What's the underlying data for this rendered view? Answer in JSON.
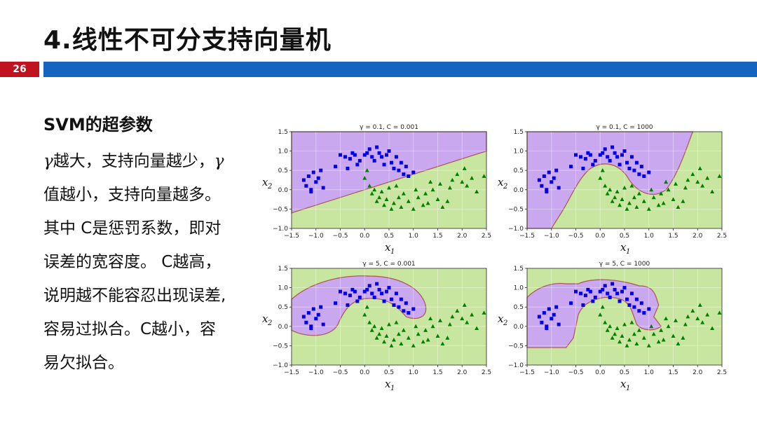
{
  "slide": {
    "title": "4.线性不可分支持向量机",
    "page_number": "26",
    "colors": {
      "page_badge": "#c1121f",
      "header_bar": "#1565c0"
    }
  },
  "text": {
    "heading": "SVM的超参数",
    "lines": [
      {
        "gamma_start": "γ",
        "text": "越大，支持向量越少，",
        "gamma_end": "γ"
      },
      {
        "gamma_start": "",
        "text": "值越小，支持向量越多。",
        "gamma_end": ""
      },
      {
        "gamma_start": "",
        "text": "其中 C是惩罚系数，即对",
        "gamma_end": ""
      },
      {
        "gamma_start": "",
        "text": "误差的宽容度。 C越高，",
        "gamma_end": ""
      },
      {
        "gamma_start": "",
        "text": "说明越不能容忍出现误差,",
        "gamma_end": ""
      },
      {
        "gamma_start": "",
        "text": "容易过拟合。C越小，容",
        "gamma_end": ""
      },
      {
        "gamma_start": "",
        "text": "易欠拟合。",
        "gamma_end": ""
      }
    ]
  },
  "chart_data": [
    {
      "type": "scatter",
      "title": "γ = 0.1, C = 0.001",
      "xlabel": "x",
      "xlabel_sub": "1",
      "ylabel": "x",
      "ylabel_sub": "2",
      "xlim": [
        -1.5,
        2.5
      ],
      "ylim": [
        -1.0,
        1.5
      ],
      "xticks": [
        "−1.5",
        "−1.0",
        "−0.5",
        "0.0",
        "0.5",
        "1.0",
        "1.5",
        "2.0",
        "2.5"
      ],
      "yticks": [
        "−1.0",
        "−0.5",
        "0.0",
        "0.5",
        "1.0",
        "1.5"
      ],
      "grid": true,
      "boundary": "linear",
      "regions": {
        "class0_color": "#c9a8f0",
        "class1_color": "#c8e6a0"
      },
      "series": [
        {
          "marker": "square",
          "color": "#0000ee",
          "x": [
            -1.2,
            -1.15,
            -1.1,
            -1.05,
            -1.0,
            -0.95,
            -0.9,
            -0.85,
            -1.25,
            -1.1,
            -0.6,
            -0.5,
            -0.4,
            -0.35,
            -0.25,
            -0.2,
            -0.15,
            -0.1,
            0.0,
            0.05,
            0.1,
            0.15,
            0.2,
            0.25,
            0.3,
            0.35,
            0.4,
            0.5,
            0.55,
            0.6,
            0.7,
            0.8,
            0.85,
            0.9,
            1.0,
            -0.3,
            0.45,
            0.65,
            0.75
          ],
          "y": [
            0.1,
            0.35,
            0.0,
            0.45,
            0.2,
            0.3,
            0.5,
            0.05,
            0.25,
            -0.05,
            0.6,
            0.9,
            0.85,
            0.55,
            0.95,
            0.9,
            0.65,
            0.75,
            0.9,
            0.95,
            1.05,
            0.85,
            0.75,
            1.1,
            0.95,
            0.85,
            0.65,
            1.0,
            0.7,
            0.55,
            0.5,
            0.4,
            0.6,
            0.35,
            0.45,
            0.8,
            0.9,
            0.85,
            0.7
          ]
        },
        {
          "marker": "triangle",
          "color": "#008000",
          "x": [
            0.0,
            0.05,
            0.1,
            0.15,
            0.2,
            0.25,
            0.3,
            0.35,
            0.4,
            0.45,
            0.5,
            0.6,
            0.7,
            0.75,
            0.8,
            0.9,
            1.0,
            1.1,
            1.2,
            1.25,
            1.3,
            1.4,
            1.5,
            1.55,
            1.6,
            1.7,
            1.75,
            1.8,
            1.9,
            2.0,
            2.05,
            2.1,
            2.2,
            2.3,
            2.45,
            0.55,
            0.65,
            1.05,
            1.35
          ],
          "y": [
            0.3,
            0.5,
            0.1,
            -0.1,
            0.0,
            -0.3,
            -0.2,
            -0.05,
            -0.4,
            -0.25,
            0.05,
            -0.35,
            -0.2,
            -0.45,
            -0.1,
            -0.3,
            -0.5,
            -0.2,
            -0.4,
            -0.1,
            -0.35,
            0.0,
            -0.25,
            0.15,
            -0.45,
            -0.3,
            0.05,
            0.25,
            0.4,
            0.2,
            0.55,
            0.1,
            0.3,
            -0.05,
            0.35,
            -0.5,
            0.1,
            0.0,
            0.2
          ]
        }
      ]
    },
    {
      "type": "scatter",
      "title": "γ = 0.1, C = 1000",
      "xlabel": "x",
      "xlabel_sub": "1",
      "ylabel": "x",
      "ylabel_sub": "2",
      "xlim": [
        -1.5,
        2.5
      ],
      "ylim": [
        -1.0,
        1.5
      ],
      "xticks": [
        "−1.5",
        "−1.0",
        "−0.5",
        "0.0",
        "0.5",
        "1.0",
        "1.5",
        "2.0",
        "2.5"
      ],
      "yticks": [
        "−1.0",
        "−0.5",
        "0.0",
        "0.5",
        "1.0",
        "1.5"
      ],
      "grid": true,
      "boundary": "wavy-smooth",
      "regions": {
        "class0_color": "#c9a8f0",
        "class1_color": "#c8e6a0"
      },
      "series": [
        {
          "marker": "square",
          "color": "#0000ee",
          "x": [
            -1.2,
            -1.15,
            -1.1,
            -1.05,
            -1.0,
            -0.95,
            -0.9,
            -0.85,
            -1.25,
            -1.1,
            -0.6,
            -0.5,
            -0.4,
            -0.35,
            -0.25,
            -0.2,
            -0.15,
            -0.1,
            0.0,
            0.05,
            0.1,
            0.15,
            0.2,
            0.25,
            0.3,
            0.35,
            0.4,
            0.5,
            0.55,
            0.6,
            0.7,
            0.8,
            0.85,
            0.9,
            1.0,
            -0.3,
            0.45,
            0.65,
            0.75
          ],
          "y": [
            0.1,
            0.35,
            0.0,
            0.45,
            0.2,
            0.3,
            0.5,
            0.05,
            0.25,
            -0.05,
            0.6,
            0.9,
            0.85,
            0.55,
            0.95,
            0.9,
            0.65,
            0.75,
            0.9,
            0.95,
            1.05,
            0.85,
            0.75,
            1.1,
            0.95,
            0.85,
            0.65,
            1.0,
            0.7,
            0.55,
            0.5,
            0.4,
            0.6,
            0.35,
            0.45,
            0.8,
            0.9,
            0.85,
            0.7
          ]
        },
        {
          "marker": "triangle",
          "color": "#008000",
          "x": [
            0.0,
            0.05,
            0.1,
            0.15,
            0.2,
            0.25,
            0.3,
            0.35,
            0.4,
            0.45,
            0.5,
            0.6,
            0.7,
            0.75,
            0.8,
            0.9,
            1.0,
            1.1,
            1.2,
            1.25,
            1.3,
            1.4,
            1.5,
            1.55,
            1.6,
            1.7,
            1.75,
            1.8,
            1.9,
            2.0,
            2.05,
            2.1,
            2.2,
            2.3,
            2.45,
            0.55,
            0.65,
            1.05,
            1.35
          ],
          "y": [
            0.3,
            0.5,
            0.1,
            -0.1,
            0.0,
            -0.3,
            -0.2,
            -0.05,
            -0.4,
            -0.25,
            0.05,
            -0.35,
            -0.2,
            -0.45,
            -0.1,
            -0.3,
            -0.5,
            -0.2,
            -0.4,
            -0.1,
            -0.35,
            0.0,
            -0.25,
            0.15,
            -0.45,
            -0.3,
            0.05,
            0.25,
            0.4,
            0.2,
            0.55,
            0.1,
            0.3,
            -0.05,
            0.35,
            -0.5,
            0.1,
            0.0,
            0.2
          ]
        }
      ]
    },
    {
      "type": "scatter",
      "title": "γ = 5, C = 0.001",
      "xlabel": "x",
      "xlabel_sub": "1",
      "ylabel": "x",
      "ylabel_sub": "2",
      "xlim": [
        -1.5,
        2.5
      ],
      "ylim": [
        -1.0,
        1.5
      ],
      "xticks": [
        "−1.5",
        "−1.0",
        "−0.5",
        "0.0",
        "0.5",
        "1.0",
        "1.5",
        "2.0",
        "2.5"
      ],
      "yticks": [
        "−1.0",
        "−0.5",
        "0.0",
        "0.5",
        "1.0",
        "1.5"
      ],
      "grid": true,
      "boundary": "moon-blob",
      "regions": {
        "class0_color": "#c9a8f0",
        "class1_color": "#c8e6a0"
      },
      "series": [
        {
          "marker": "square",
          "color": "#0000ee",
          "x": [
            -1.2,
            -1.15,
            -1.1,
            -1.05,
            -1.0,
            -0.95,
            -0.9,
            -0.85,
            -1.25,
            -1.1,
            -0.6,
            -0.5,
            -0.4,
            -0.35,
            -0.25,
            -0.2,
            -0.15,
            -0.1,
            0.0,
            0.05,
            0.1,
            0.15,
            0.2,
            0.25,
            0.3,
            0.35,
            0.4,
            0.5,
            0.55,
            0.6,
            0.7,
            0.8,
            0.85,
            0.9,
            1.0,
            -0.3,
            0.45,
            0.65,
            0.75
          ],
          "y": [
            0.1,
            0.35,
            0.0,
            0.45,
            0.2,
            0.3,
            0.5,
            0.05,
            0.25,
            -0.05,
            0.6,
            0.9,
            0.85,
            0.55,
            0.95,
            0.9,
            0.65,
            0.75,
            0.9,
            0.95,
            1.05,
            0.85,
            0.75,
            1.1,
            0.95,
            0.85,
            0.65,
            1.0,
            0.7,
            0.55,
            0.5,
            0.4,
            0.6,
            0.35,
            0.45,
            0.8,
            0.9,
            0.85,
            0.7
          ]
        },
        {
          "marker": "triangle",
          "color": "#008000",
          "x": [
            0.0,
            0.05,
            0.1,
            0.15,
            0.2,
            0.25,
            0.3,
            0.35,
            0.4,
            0.45,
            0.5,
            0.6,
            0.7,
            0.75,
            0.8,
            0.9,
            1.0,
            1.1,
            1.2,
            1.25,
            1.3,
            1.4,
            1.5,
            1.55,
            1.6,
            1.7,
            1.75,
            1.8,
            1.9,
            2.0,
            2.05,
            2.1,
            2.2,
            2.3,
            2.45,
            0.55,
            0.65,
            1.05,
            1.35
          ],
          "y": [
            0.3,
            0.5,
            0.1,
            -0.1,
            0.0,
            -0.3,
            -0.2,
            -0.05,
            -0.4,
            -0.25,
            0.05,
            -0.35,
            -0.2,
            -0.45,
            -0.1,
            -0.3,
            -0.5,
            -0.2,
            -0.4,
            -0.1,
            -0.35,
            0.0,
            -0.25,
            0.15,
            -0.45,
            -0.3,
            0.05,
            0.25,
            0.4,
            0.2,
            0.55,
            0.1,
            0.3,
            -0.05,
            0.35,
            -0.5,
            0.1,
            0.0,
            0.2
          ]
        }
      ]
    },
    {
      "type": "scatter",
      "title": "γ = 5, C = 1000",
      "xlabel": "x",
      "xlabel_sub": "1",
      "ylabel": "x",
      "ylabel_sub": "2",
      "xlim": [
        -1.5,
        2.5
      ],
      "ylim": [
        -1.0,
        1.5
      ],
      "xticks": [
        "−1.5",
        "−1.0",
        "−0.5",
        "0.0",
        "0.5",
        "1.0",
        "1.5",
        "2.0",
        "2.5"
      ],
      "yticks": [
        "−1.0",
        "−0.5",
        "0.0",
        "0.5",
        "1.0",
        "1.5"
      ],
      "grid": true,
      "boundary": "moon-tight",
      "regions": {
        "class0_color": "#c9a8f0",
        "class1_color": "#c8e6a0"
      },
      "series": [
        {
          "marker": "square",
          "color": "#0000ee",
          "x": [
            -1.2,
            -1.15,
            -1.1,
            -1.05,
            -1.0,
            -0.95,
            -0.9,
            -0.85,
            -1.25,
            -1.1,
            -0.6,
            -0.5,
            -0.4,
            -0.35,
            -0.25,
            -0.2,
            -0.15,
            -0.1,
            0.0,
            0.05,
            0.1,
            0.15,
            0.2,
            0.25,
            0.3,
            0.35,
            0.4,
            0.5,
            0.55,
            0.6,
            0.7,
            0.8,
            0.85,
            0.9,
            1.0,
            -0.3,
            0.45,
            0.65,
            0.75
          ],
          "y": [
            0.1,
            0.35,
            0.0,
            0.45,
            0.2,
            0.3,
            0.5,
            0.05,
            0.25,
            -0.05,
            0.6,
            0.9,
            0.85,
            0.55,
            0.95,
            0.9,
            0.65,
            0.75,
            0.9,
            0.95,
            1.05,
            0.85,
            0.75,
            1.1,
            0.95,
            0.85,
            0.65,
            1.0,
            0.7,
            0.55,
            0.5,
            0.4,
            0.6,
            0.35,
            0.45,
            0.8,
            0.9,
            0.85,
            0.7
          ]
        },
        {
          "marker": "triangle",
          "color": "#008000",
          "x": [
            0.0,
            0.05,
            0.1,
            0.15,
            0.2,
            0.25,
            0.3,
            0.35,
            0.4,
            0.45,
            0.5,
            0.6,
            0.7,
            0.75,
            0.8,
            0.9,
            1.0,
            1.1,
            1.2,
            1.25,
            1.3,
            1.4,
            1.5,
            1.55,
            1.6,
            1.7,
            1.75,
            1.8,
            1.9,
            2.0,
            2.05,
            2.1,
            2.2,
            2.3,
            2.45,
            0.55,
            0.65,
            1.05,
            1.35
          ],
          "y": [
            0.3,
            0.5,
            0.1,
            -0.1,
            0.0,
            -0.3,
            -0.2,
            -0.05,
            -0.4,
            -0.25,
            0.05,
            -0.35,
            -0.2,
            -0.45,
            -0.1,
            -0.3,
            -0.5,
            -0.2,
            -0.4,
            -0.1,
            -0.35,
            0.0,
            -0.25,
            0.15,
            -0.45,
            -0.3,
            0.05,
            0.25,
            0.4,
            0.2,
            0.55,
            0.1,
            0.3,
            -0.05,
            0.35,
            -0.5,
            0.1,
            0.0,
            0.2
          ]
        }
      ]
    }
  ]
}
